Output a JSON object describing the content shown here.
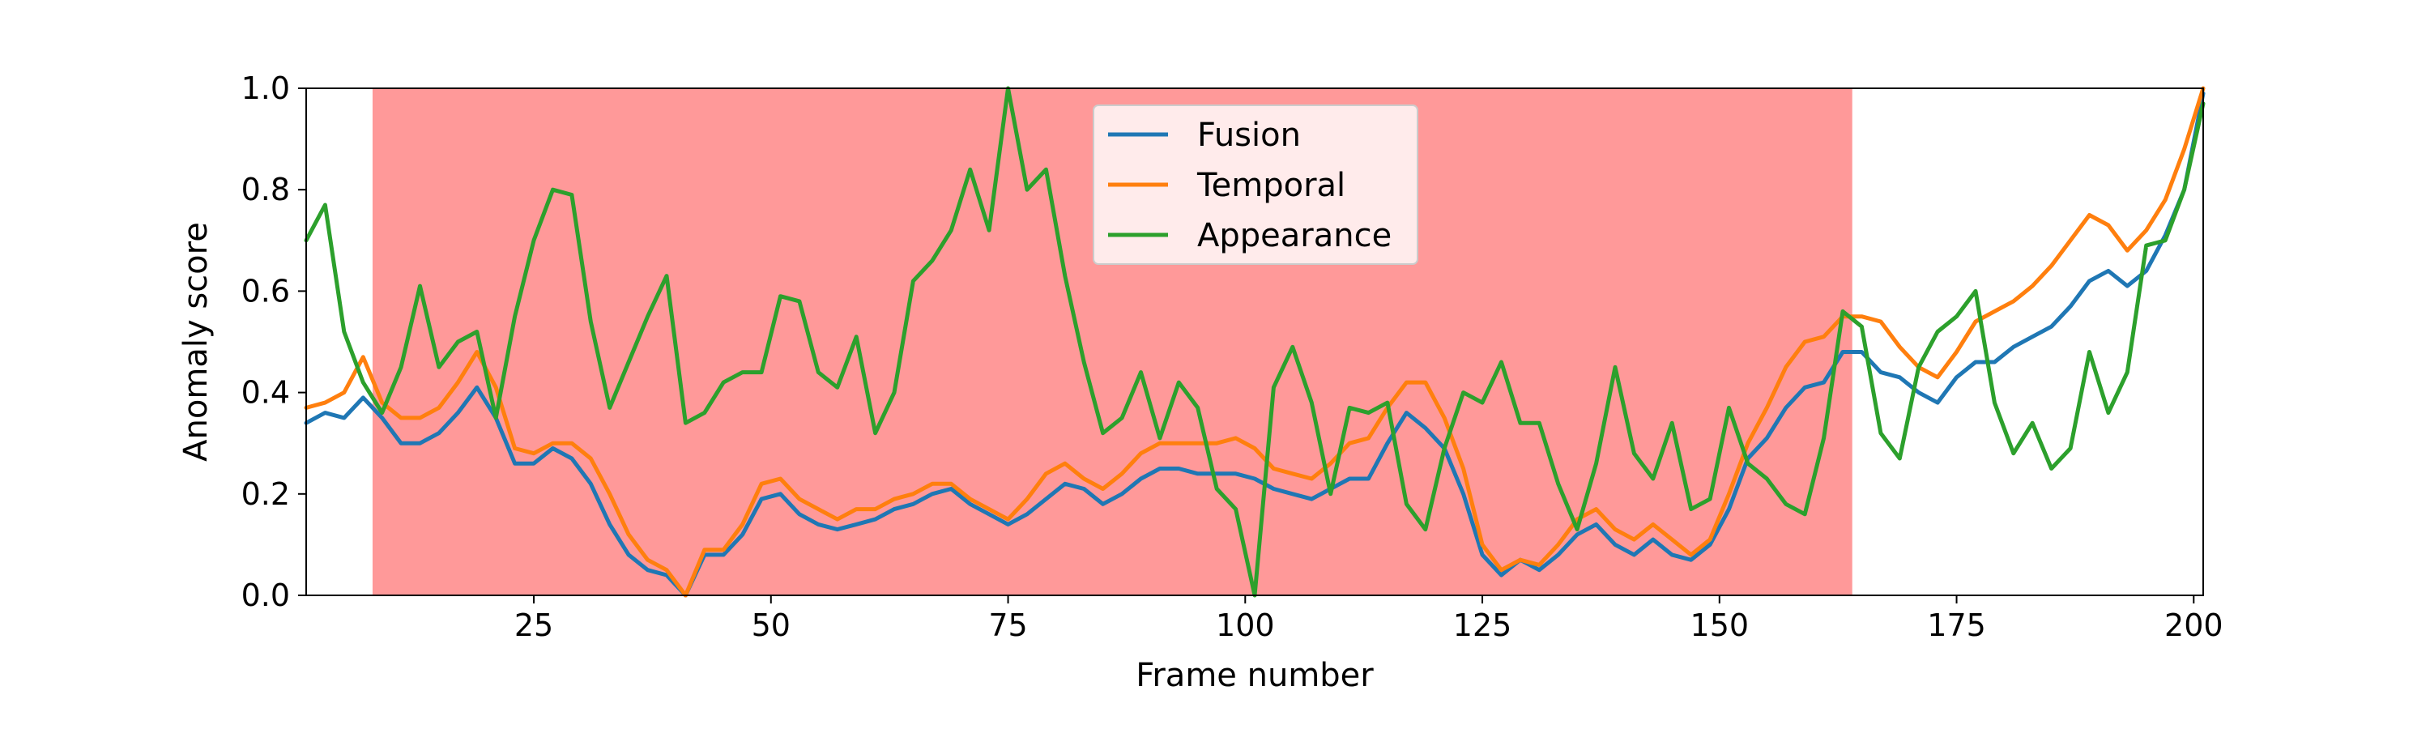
{
  "chart_data": {
    "type": "line",
    "xlabel": "Frame number",
    "ylabel": "Anomaly score",
    "xlim": [
      1,
      201
    ],
    "ylim": [
      0,
      1.0
    ],
    "x_ticks": [
      25,
      50,
      75,
      100,
      125,
      150,
      175,
      200
    ],
    "x_tick_labels": [
      "25",
      "50",
      "75",
      "100",
      "125",
      "150",
      "175",
      "200"
    ],
    "y_ticks": [
      0.0,
      0.2,
      0.4,
      0.6,
      0.8,
      1.0
    ],
    "y_tick_labels": [
      "0.0",
      "0.2",
      "0.4",
      "0.6",
      "0.8",
      "1.0"
    ],
    "grid": false,
    "legend_position": "top-center",
    "anomaly_region": {
      "x_start": 8,
      "x_end": 164,
      "color": "#ff9999"
    },
    "x": [
      1,
      3,
      5,
      7,
      9,
      11,
      13,
      15,
      17,
      19,
      21,
      23,
      25,
      27,
      29,
      31,
      33,
      35,
      37,
      39,
      41,
      43,
      45,
      47,
      49,
      51,
      53,
      55,
      57,
      59,
      61,
      63,
      65,
      67,
      69,
      71,
      73,
      75,
      77,
      79,
      81,
      83,
      85,
      87,
      89,
      91,
      93,
      95,
      97,
      99,
      101,
      103,
      105,
      107,
      109,
      111,
      113,
      115,
      117,
      119,
      121,
      123,
      125,
      127,
      129,
      131,
      133,
      135,
      137,
      139,
      141,
      143,
      145,
      147,
      149,
      151,
      153,
      155,
      157,
      159,
      161,
      163,
      165,
      167,
      169,
      171,
      173,
      175,
      177,
      179,
      181,
      183,
      185,
      187,
      189,
      191,
      193,
      195,
      197,
      199,
      201
    ],
    "series": [
      {
        "name": "Fusion",
        "color": "#1f77b4",
        "values": [
          0.34,
          0.36,
          0.35,
          0.39,
          0.35,
          0.3,
          0.3,
          0.32,
          0.36,
          0.41,
          0.35,
          0.26,
          0.26,
          0.29,
          0.27,
          0.22,
          0.14,
          0.08,
          0.05,
          0.04,
          0.0,
          0.08,
          0.08,
          0.12,
          0.19,
          0.2,
          0.16,
          0.14,
          0.13,
          0.14,
          0.15,
          0.17,
          0.18,
          0.2,
          0.21,
          0.18,
          0.16,
          0.14,
          0.16,
          0.19,
          0.22,
          0.21,
          0.18,
          0.2,
          0.23,
          0.25,
          0.25,
          0.24,
          0.24,
          0.24,
          0.23,
          0.21,
          0.2,
          0.19,
          0.21,
          0.23,
          0.23,
          0.3,
          0.36,
          0.33,
          0.29,
          0.2,
          0.08,
          0.04,
          0.07,
          0.05,
          0.08,
          0.12,
          0.14,
          0.1,
          0.08,
          0.11,
          0.08,
          0.07,
          0.1,
          0.17,
          0.27,
          0.31,
          0.37,
          0.41,
          0.42,
          0.48,
          0.48,
          0.44,
          0.43,
          0.4,
          0.38,
          0.43,
          0.46,
          0.46,
          0.49,
          0.51,
          0.53,
          0.57,
          0.62,
          0.64,
          0.61,
          0.64,
          0.71,
          0.8,
          0.99
        ]
      },
      {
        "name": "Temporal",
        "color": "#ff7f0e",
        "values": [
          0.37,
          0.38,
          0.4,
          0.47,
          0.38,
          0.35,
          0.35,
          0.37,
          0.42,
          0.48,
          0.41,
          0.29,
          0.28,
          0.3,
          0.3,
          0.27,
          0.2,
          0.12,
          0.07,
          0.05,
          0.0,
          0.09,
          0.09,
          0.14,
          0.22,
          0.23,
          0.19,
          0.17,
          0.15,
          0.17,
          0.17,
          0.19,
          0.2,
          0.22,
          0.22,
          0.19,
          0.17,
          0.15,
          0.19,
          0.24,
          0.26,
          0.23,
          0.21,
          0.24,
          0.28,
          0.3,
          0.3,
          0.3,
          0.3,
          0.31,
          0.29,
          0.25,
          0.24,
          0.23,
          0.26,
          0.3,
          0.31,
          0.37,
          0.42,
          0.42,
          0.35,
          0.25,
          0.1,
          0.05,
          0.07,
          0.06,
          0.1,
          0.15,
          0.17,
          0.13,
          0.11,
          0.14,
          0.11,
          0.08,
          0.11,
          0.2,
          0.3,
          0.37,
          0.45,
          0.5,
          0.51,
          0.55,
          0.55,
          0.54,
          0.49,
          0.45,
          0.43,
          0.48,
          0.54,
          0.56,
          0.58,
          0.61,
          0.65,
          0.7,
          0.75,
          0.73,
          0.68,
          0.72,
          0.78,
          0.88,
          1.0
        ]
      },
      {
        "name": "Appearance",
        "color": "#2ca02c",
        "values": [
          0.7,
          0.77,
          0.52,
          0.42,
          0.36,
          0.45,
          0.61,
          0.45,
          0.5,
          0.52,
          0.35,
          0.55,
          0.7,
          0.8,
          0.79,
          0.54,
          0.37,
          0.46,
          0.55,
          0.63,
          0.34,
          0.36,
          0.42,
          0.44,
          0.44,
          0.59,
          0.58,
          0.44,
          0.41,
          0.51,
          0.32,
          0.4,
          0.62,
          0.66,
          0.72,
          0.84,
          0.72,
          1.0,
          0.8,
          0.84,
          0.63,
          0.46,
          0.32,
          0.35,
          0.44,
          0.31,
          0.42,
          0.37,
          0.21,
          0.17,
          0.0,
          0.41,
          0.49,
          0.38,
          0.2,
          0.37,
          0.36,
          0.38,
          0.18,
          0.13,
          0.29,
          0.4,
          0.38,
          0.46,
          0.34,
          0.34,
          0.22,
          0.13,
          0.26,
          0.45,
          0.28,
          0.23,
          0.34,
          0.17,
          0.19,
          0.37,
          0.26,
          0.23,
          0.18,
          0.16,
          0.31,
          0.56,
          0.53,
          0.32,
          0.27,
          0.45,
          0.52,
          0.55,
          0.6,
          0.38,
          0.28,
          0.34,
          0.25,
          0.29,
          0.48,
          0.36,
          0.44,
          0.69,
          0.7,
          0.8,
          0.97
        ]
      }
    ]
  }
}
